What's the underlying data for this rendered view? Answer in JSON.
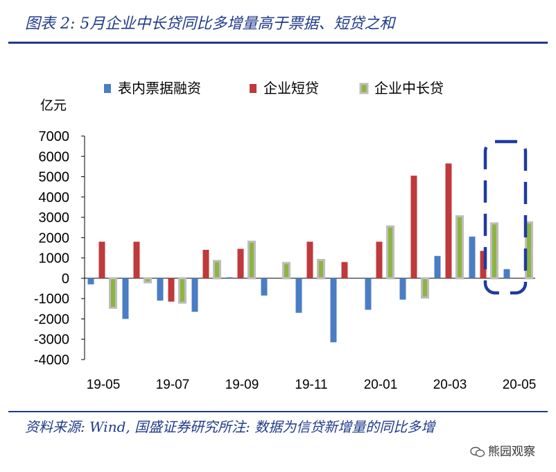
{
  "header": {
    "title": "图表 2:  5月企业中长贷同比多增量高于票据、短贷之和"
  },
  "footer": {
    "source": "资料来源: Wind, 国盛证券研究所注: 数据为信贷新增量的同比多增",
    "watermark": "熊园观察"
  },
  "chart_data": {
    "type": "bar",
    "title": "",
    "xlabel": "",
    "ylabel": "亿元",
    "ylim": [
      -4000,
      7000
    ],
    "yticks": [
      7000,
      6000,
      5000,
      4000,
      3000,
      2000,
      1000,
      0,
      -1000,
      -2000,
      -3000,
      -4000
    ],
    "categories": [
      "19-05",
      "19-06",
      "19-07",
      "19-08",
      "19-09",
      "19-10",
      "19-11",
      "19-12",
      "20-01",
      "20-02",
      "20-03",
      "20-04",
      "20-05"
    ],
    "x_tick_labels": [
      "19-05",
      "19-07",
      "19-09",
      "19-11",
      "20-01",
      "20-03",
      "20-05"
    ],
    "legend_position": "top",
    "series": [
      {
        "name": "表内票据融资",
        "color": "#4a7dc4",
        "values": [
          -300,
          -2000,
          -1100,
          -1650,
          50,
          -850,
          -1700,
          -3150,
          -1550,
          -1050,
          1100,
          2050,
          450
        ]
      },
      {
        "name": "企业短贷",
        "color": "#c0393b",
        "values": [
          1800,
          1800,
          -1150,
          1400,
          1450,
          0,
          1800,
          800,
          1800,
          5050,
          5650,
          1350,
          0
        ]
      },
      {
        "name": "企业中长贷",
        "color": "#8eb440",
        "values": [
          -1450,
          -200,
          -1200,
          850,
          1800,
          750,
          900,
          0,
          2550,
          -950,
          3050,
          2700,
          2750
        ]
      }
    ],
    "highlight": {
      "category": "20-05",
      "style": "dashed-rounded-box",
      "color": "#1f3aa0"
    }
  }
}
